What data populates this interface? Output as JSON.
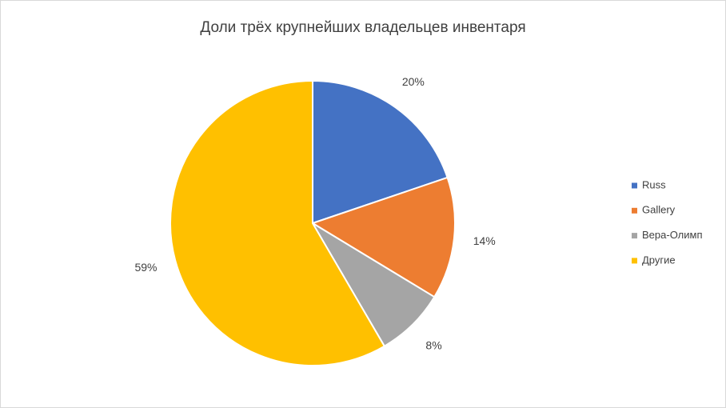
{
  "chart_data": {
    "type": "pie",
    "title": "Доли трёх крупнейших владельцев инвентаря",
    "categories": [
      "Russ",
      "Gallery",
      "Вера-Олимп",
      "Другие"
    ],
    "values": [
      20,
      14,
      8,
      59
    ],
    "value_labels": [
      "20%",
      "14%",
      "8%",
      "59%"
    ],
    "colors": [
      "#4472c4",
      "#ed7d31",
      "#a5a5a5",
      "#ffc000"
    ],
    "legend": "right"
  }
}
